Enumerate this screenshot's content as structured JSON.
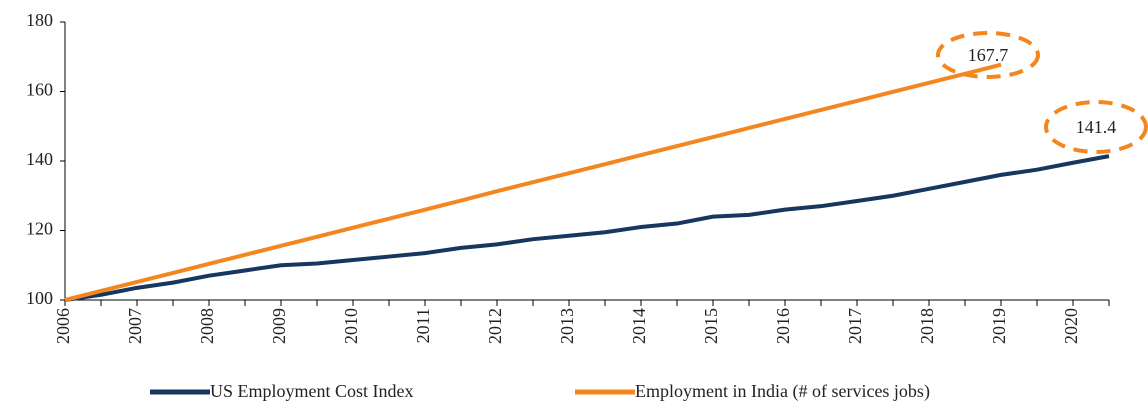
{
  "chart_data": {
    "type": "line",
    "categories": [
      "2006",
      null,
      "2007",
      null,
      "2008",
      null,
      "2009",
      null,
      "2010",
      null,
      "2011",
      null,
      "2012",
      null,
      "2013",
      null,
      "2014",
      null,
      "2015",
      null,
      "2016",
      null,
      "2017",
      null,
      "2018",
      null,
      "2019",
      null,
      "2020",
      null
    ],
    "series": [
      {
        "name": "US Employment Cost Index",
        "color": "#17375e",
        "values": [
          100,
          101.5,
          103.5,
          105,
          107,
          108.5,
          110,
          110.5,
          111.5,
          112.5,
          113.5,
          115,
          116,
          117.5,
          118.5,
          119.5,
          121,
          122,
          124,
          124.5,
          126,
          127,
          128.5,
          130,
          132,
          134,
          136,
          137.5,
          139.5,
          141.4
        ]
      },
      {
        "name": "Employment in India (# of services jobs)",
        "color": "#f5861f",
        "values": [
          100,
          102.6,
          105.2,
          107.8,
          110.4,
          113.0,
          115.6,
          118.2,
          120.8,
          123.4,
          126.0,
          128.6,
          131.3,
          133.9,
          136.5,
          139.1,
          141.7,
          144.3,
          146.9,
          149.5,
          152.1,
          154.7,
          157.3,
          159.9,
          162.5,
          165.1,
          167.7,
          null,
          null,
          null
        ]
      }
    ],
    "ylim": [
      100,
      180
    ],
    "yticks": [
      100,
      120,
      140,
      160,
      180
    ],
    "grid": false
  }
}
